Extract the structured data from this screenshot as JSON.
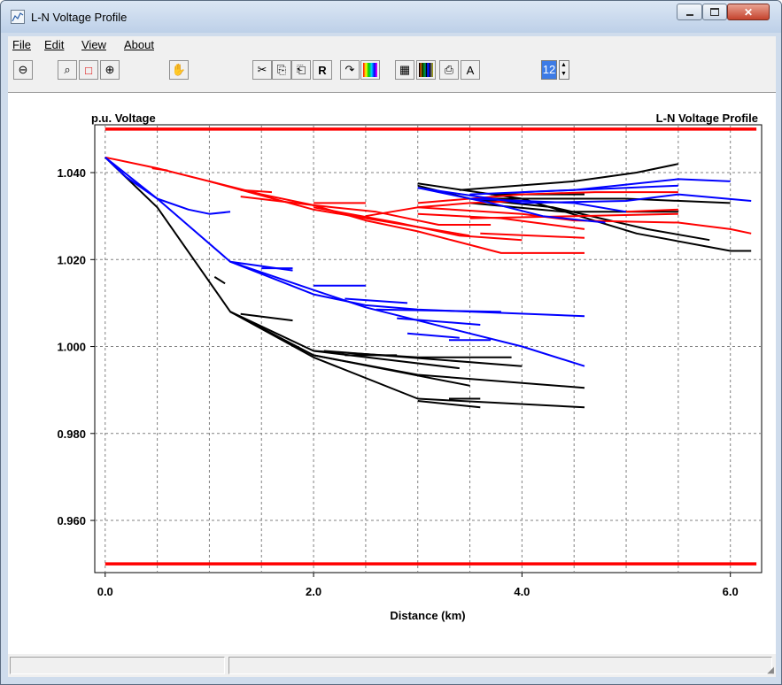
{
  "window": {
    "title": "L-N Voltage Profile"
  },
  "menu": {
    "file": "File",
    "edit": "Edit",
    "view": "View",
    "about": "About"
  },
  "toolbar": {
    "font_size": "12",
    "buttons": [
      {
        "name": "zoom-out-icon",
        "glyph": "⊖"
      },
      {
        "name": "zoom-icon",
        "glyph": "⌕"
      },
      {
        "name": "zoom-box-icon",
        "glyph": "□"
      },
      {
        "name": "zoom-in-icon",
        "glyph": "⊕"
      },
      {
        "name": "pan-hand-icon",
        "glyph": "✋"
      },
      {
        "name": "cut-icon",
        "glyph": "✂"
      },
      {
        "name": "copy-icon",
        "glyph": "⎘"
      },
      {
        "name": "paste-icon",
        "glyph": "⎗"
      },
      {
        "name": "R",
        "glyph": "R"
      },
      {
        "name": "redraw-icon",
        "glyph": "↷"
      },
      {
        "name": "color-palette-icon",
        "glyph": ""
      },
      {
        "name": "grid-icon",
        "glyph": "▦"
      },
      {
        "name": "color-grid-icon",
        "glyph": ""
      },
      {
        "name": "print-icon",
        "glyph": "⎙"
      },
      {
        "name": "font-icon",
        "glyph": "A"
      }
    ]
  },
  "chart_data": {
    "type": "line",
    "title": "L-N Voltage Profile",
    "ylabel": "p.u. Voltage",
    "xlabel": "Distance (km)",
    "xlim": [
      -0.1,
      6.3
    ],
    "ylim": [
      0.948,
      1.051
    ],
    "xticks": [
      "0.0",
      "2.0",
      "4.0",
      "6.0"
    ],
    "yticks": [
      "0.960",
      "0.980",
      "1.000",
      "1.020",
      "1.040"
    ],
    "grid": true,
    "colors": {
      "phase_a": "#000000",
      "phase_b": "#ff0000",
      "phase_c": "#0000ff",
      "limit": "#ff0000"
    },
    "limits": [
      {
        "value": 1.05,
        "x": [
          0.0,
          6.25
        ]
      },
      {
        "value": 0.95,
        "x": [
          0.0,
          6.25
        ]
      }
    ],
    "series": [
      {
        "color": "#000000",
        "segments": [
          [
            [
              0.0,
              1.0435
            ],
            [
              0.5,
              1.032
            ],
            [
              1.2,
              1.008
            ],
            [
              2.0,
              0.9975
            ],
            [
              3.0,
              0.988
            ],
            [
              4.6,
              0.986
            ]
          ],
          [
            [
              1.2,
              1.008
            ],
            [
              2.0,
              0.999
            ],
            [
              3.4,
              0.995
            ]
          ],
          [
            [
              1.2,
              1.008
            ],
            [
              2.0,
              0.998
            ],
            [
              3.0,
              0.9935
            ],
            [
              4.6,
              0.9905
            ]
          ],
          [
            [
              2.0,
              0.998
            ],
            [
              3.5,
              0.991
            ]
          ],
          [
            [
              2.0,
              0.999
            ],
            [
              3.0,
              0.9975
            ],
            [
              3.9,
              0.9975
            ]
          ],
          [
            [
              2.1,
              0.999
            ],
            [
              4.0,
              0.9955
            ]
          ],
          [
            [
              3.0,
              0.9875
            ],
            [
              3.6,
              0.986
            ]
          ],
          [
            [
              3.3,
              0.988
            ],
            [
              3.6,
              0.988
            ]
          ],
          [
            [
              1.05,
              1.016
            ],
            [
              1.15,
              1.0145
            ]
          ],
          [
            [
              1.3,
              1.0075
            ],
            [
              1.8,
              1.006
            ]
          ],
          [
            [
              2.3,
              0.998
            ],
            [
              2.8,
              0.998
            ]
          ],
          [
            [
              3.0,
              1.0375
            ],
            [
              4.0,
              1.034
            ],
            [
              5.1,
              1.026
            ],
            [
              6.0,
              1.022
            ],
            [
              6.2,
              1.022
            ]
          ],
          [
            [
              3.0,
              1.037
            ],
            [
              3.5,
              1.034
            ],
            [
              4.3,
              1.032
            ],
            [
              5.2,
              1.027
            ],
            [
              5.8,
              1.0245
            ]
          ],
          [
            [
              3.4,
              1.036
            ],
            [
              4.5,
              1.038
            ],
            [
              5.1,
              1.04
            ],
            [
              5.5,
              1.042
            ]
          ],
          [
            [
              3.5,
              1.034
            ],
            [
              5.0,
              1.034
            ],
            [
              6.0,
              1.033
            ]
          ],
          [
            [
              3.5,
              1.033
            ],
            [
              4.4,
              1.031
            ],
            [
              5.5,
              1.031
            ]
          ],
          [
            [
              3.7,
              1.035
            ],
            [
              4.6,
              1.035
            ]
          ]
        ]
      },
      {
        "color": "#ff0000",
        "segments": [
          [
            [
              0.0,
              1.0435
            ],
            [
              0.5,
              1.041
            ],
            [
              1.0,
              1.038
            ],
            [
              1.5,
              1.035
            ],
            [
              2.0,
              1.0325
            ],
            [
              2.5,
              1.029
            ],
            [
              3.0,
              1.0265
            ],
            [
              3.8,
              1.0215
            ],
            [
              4.6,
              1.0215
            ]
          ],
          [
            [
              1.0,
              1.038
            ],
            [
              2.0,
              1.0315
            ],
            [
              2.5,
              1.0295
            ],
            [
              3.5,
              1.0255
            ]
          ],
          [
            [
              1.3,
              1.0345
            ],
            [
              2.0,
              1.0325
            ],
            [
              2.6,
              1.031
            ],
            [
              3.2,
              1.028
            ],
            [
              3.7,
              1.028
            ]
          ],
          [
            [
              2.0,
              1.032
            ],
            [
              2.8,
              1.0285
            ],
            [
              3.4,
              1.0255
            ],
            [
              4.0,
              1.0245
            ]
          ],
          [
            [
              2.0,
              1.033
            ],
            [
              2.5,
              1.033
            ]
          ],
          [
            [
              2.5,
              1.03
            ],
            [
              3.0,
              1.032
            ],
            [
              3.5,
              1.033
            ],
            [
              4.0,
              1.0335
            ]
          ],
          [
            [
              3.0,
              1.0305
            ],
            [
              3.8,
              1.0295
            ],
            [
              4.6,
              1.027
            ]
          ],
          [
            [
              3.0,
              1.033
            ],
            [
              4.0,
              1.035
            ],
            [
              4.7,
              1.0355
            ],
            [
              5.5,
              1.0355
            ]
          ],
          [
            [
              3.0,
              1.032
            ],
            [
              4.0,
              1.0305
            ],
            [
              4.5,
              1.029
            ],
            [
              5.5,
              1.0285
            ],
            [
              6.0,
              1.027
            ],
            [
              6.2,
              1.026
            ]
          ],
          [
            [
              3.5,
              1.0295
            ],
            [
              4.5,
              1.03
            ],
            [
              5.5,
              1.0305
            ]
          ],
          [
            [
              3.6,
              1.026
            ],
            [
              4.6,
              1.025
            ]
          ],
          [
            [
              5.0,
              1.031
            ],
            [
              5.5,
              1.0315
            ]
          ],
          [
            [
              0.45,
              1.041
            ],
            [
              0.6,
              1.0405
            ]
          ],
          [
            [
              1.3,
              1.036
            ],
            [
              1.6,
              1.0355
            ]
          ]
        ]
      },
      {
        "color": "#0000ff",
        "segments": [
          [
            [
              0.0,
              1.0435
            ],
            [
              0.2,
              1.039
            ],
            [
              0.5,
              1.034
            ],
            [
              0.8,
              1.0315
            ],
            [
              1.0,
              1.0305
            ],
            [
              1.2,
              1.031
            ]
          ],
          [
            [
              0.0,
              1.0435
            ],
            [
              0.5,
              1.034
            ],
            [
              1.2,
              1.0195
            ],
            [
              2.0,
              1.012
            ],
            [
              2.5,
              1.0095
            ],
            [
              3.0,
              1.0085
            ],
            [
              4.6,
              1.007
            ]
          ],
          [
            [
              1.2,
              1.0195
            ],
            [
              2.0,
              1.013
            ],
            [
              2.5,
              1.009
            ],
            [
              3.5,
              1.003
            ],
            [
              4.0,
              1.0
            ],
            [
              4.6,
              0.9955
            ]
          ],
          [
            [
              1.2,
              1.0195
            ],
            [
              1.8,
              1.0175
            ]
          ],
          [
            [
              1.5,
              1.018
            ],
            [
              1.8,
              1.018
            ]
          ],
          [
            [
              2.0,
              1.014
            ],
            [
              2.5,
              1.014
            ]
          ],
          [
            [
              2.3,
              1.011
            ],
            [
              2.9,
              1.01
            ]
          ],
          [
            [
              2.6,
              1.0085
            ],
            [
              3.8,
              1.008
            ]
          ],
          [
            [
              2.8,
              1.0065
            ],
            [
              3.6,
              1.005
            ]
          ],
          [
            [
              2.9,
              1.003
            ],
            [
              3.4,
              1.002
            ]
          ],
          [
            [
              3.3,
              1.0015
            ],
            [
              3.7,
              1.0015
            ]
          ],
          [
            [
              3.0,
              1.0365
            ],
            [
              4.0,
              1.033
            ],
            [
              5.0,
              1.0335
            ],
            [
              5.5,
              1.035
            ],
            [
              6.2,
              1.0335
            ]
          ],
          [
            [
              3.0,
              1.0365
            ],
            [
              3.7,
              1.033
            ],
            [
              4.2,
              1.03
            ],
            [
              4.6,
              1.029
            ],
            [
              4.8,
              1.0285
            ]
          ],
          [
            [
              3.5,
              1.035
            ],
            [
              4.5,
              1.036
            ],
            [
              5.5,
              1.0385
            ],
            [
              6.0,
              1.038
            ]
          ],
          [
            [
              3.5,
              1.034
            ],
            [
              4.5,
              1.033
            ],
            [
              5.0,
              1.031
            ]
          ],
          [
            [
              4.0,
              1.0355
            ],
            [
              5.0,
              1.0365
            ],
            [
              5.5,
              1.037
            ]
          ]
        ]
      }
    ]
  }
}
